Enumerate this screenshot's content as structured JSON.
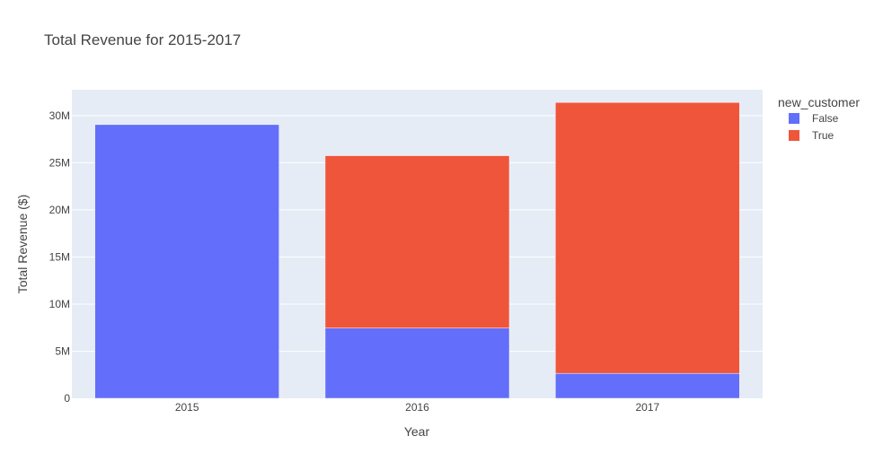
{
  "chart_data": {
    "type": "bar",
    "barmode": "stack",
    "title": "Total Revenue for 2015-2017",
    "xlabel": "Year",
    "ylabel": "Total Revenue ($)",
    "categories": [
      "2015",
      "2016",
      "2017"
    ],
    "series": [
      {
        "name": "False",
        "color": "#636efa",
        "values": [
          29050000,
          7450000,
          2650000
        ]
      },
      {
        "name": "True",
        "color": "#ef553b",
        "values": [
          0,
          18300000,
          28750000
        ]
      }
    ],
    "ylim": [
      0,
      32750000
    ],
    "yticks": [
      {
        "value": 0,
        "label": "0"
      },
      {
        "value": 5000000,
        "label": "5M"
      },
      {
        "value": 10000000,
        "label": "10M"
      },
      {
        "value": 15000000,
        "label": "15M"
      },
      {
        "value": 20000000,
        "label": "20M"
      },
      {
        "value": 25000000,
        "label": "25M"
      },
      {
        "value": 30000000,
        "label": "30M"
      }
    ],
    "grid": true,
    "plot_background": "#e5ecf6",
    "legend": {
      "title": "new_customer",
      "placement": "right"
    }
  }
}
